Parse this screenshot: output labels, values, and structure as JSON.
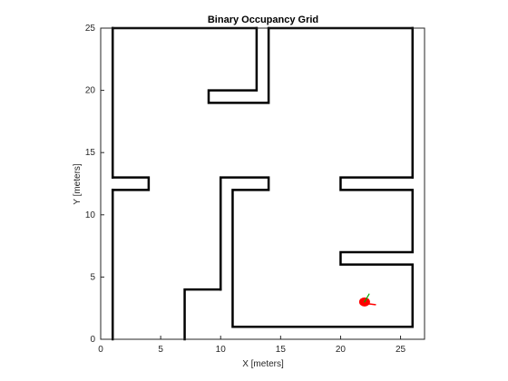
{
  "chart_data": {
    "type": "map",
    "title": "Binary Occupancy Grid",
    "xlabel": "X [meters]",
    "ylabel": "Y [meters]",
    "xlim": [
      0,
      27
    ],
    "ylim": [
      0,
      25
    ],
    "xticks": [
      0,
      5,
      10,
      15,
      20,
      25
    ],
    "yticks": [
      0,
      5,
      10,
      15,
      20,
      25
    ],
    "grid": false,
    "colors": {
      "occupied": "#000000",
      "free": "#ffffff",
      "robot": "#ff0000",
      "pose_arrow": "#00aa00"
    },
    "walls": [
      {
        "name": "outer-top-left",
        "points": [
          [
            1,
            25
          ],
          [
            13,
            25
          ]
        ]
      },
      {
        "name": "outer-top-right",
        "points": [
          [
            14,
            25
          ],
          [
            26,
            25
          ]
        ]
      },
      {
        "name": "left-wall-upper",
        "points": [
          [
            1,
            25
          ],
          [
            1,
            13
          ]
        ]
      },
      {
        "name": "right-wall-upper",
        "points": [
          [
            26,
            25
          ],
          [
            26,
            13
          ]
        ]
      },
      {
        "name": "upper-left-stub",
        "points": [
          [
            1,
            13
          ],
          [
            4,
            13
          ],
          [
            4,
            12
          ],
          [
            1,
            12
          ]
        ]
      },
      {
        "name": "left-wall-lower",
        "points": [
          [
            1,
            12
          ],
          [
            1,
            0
          ]
        ]
      },
      {
        "name": "middle-upper-pillar",
        "points": [
          [
            13,
            25
          ],
          [
            13,
            20
          ],
          [
            9,
            20
          ],
          [
            9,
            19
          ],
          [
            14,
            19
          ],
          [
            14,
            25
          ]
        ]
      },
      {
        "name": "center-room",
        "points": [
          [
            10,
            4
          ],
          [
            10,
            13
          ],
          [
            14,
            13
          ],
          [
            14,
            12
          ],
          [
            11,
            12
          ],
          [
            11,
            1
          ],
          [
            26,
            1
          ],
          [
            26,
            6
          ],
          [
            20,
            6
          ],
          [
            20,
            7
          ],
          [
            26,
            7
          ],
          [
            26,
            12
          ],
          [
            20,
            12
          ],
          [
            20,
            13
          ],
          [
            26,
            13
          ]
        ]
      },
      {
        "name": "lower-left-stub",
        "points": [
          [
            7,
            0
          ],
          [
            7,
            4
          ],
          [
            10,
            4
          ]
        ]
      }
    ],
    "robot": {
      "x": 22,
      "y": 3,
      "heading_deg": 60
    }
  }
}
